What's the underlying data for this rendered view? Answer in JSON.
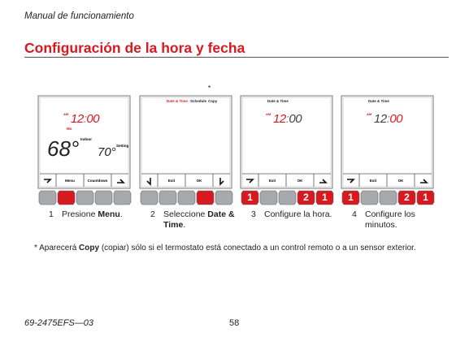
{
  "header": {
    "title": "Manual de funcionamiento"
  },
  "title": "Configuración de la hora y fecha",
  "asterisk": "*",
  "screens": [
    {
      "top": [],
      "time": {
        "am": "AM",
        "hour": "12",
        "sep": ":",
        "min": "00",
        "hour_color": "#d71920",
        "min_color": "#d71920"
      },
      "day": "Mo",
      "indoor_temp": "68°",
      "indoor_label": "Indoor",
      "set_temp": "70°",
      "set_label": "Setting",
      "arrows": [
        "down",
        "up"
      ],
      "soft_keys": [
        "Menu",
        "Countdown"
      ],
      "buttons": [
        {
          "lit": false
        },
        {
          "lit": true
        },
        {
          "lit": false
        },
        {
          "lit": false
        },
        {
          "lit": false
        }
      ]
    },
    {
      "top": [
        {
          "text": "Date & Time",
          "color": "#d71920"
        },
        {
          "text": "Schedule",
          "color": "#222"
        },
        {
          "text": "Copy",
          "color": "#222"
        }
      ],
      "arrows": [
        "left",
        "right"
      ],
      "soft_keys": [
        "Exit",
        "OK"
      ],
      "buttons": [
        {
          "lit": false
        },
        {
          "lit": false
        },
        {
          "lit": false
        },
        {
          "lit": true
        },
        {
          "lit": false
        }
      ]
    },
    {
      "top": [
        {
          "text": "Date & Time",
          "color": "#222"
        }
      ],
      "time": {
        "am": "AM",
        "hour": "12",
        "sep": ":",
        "min": "00",
        "hour_color": "#d71920",
        "min_color": "#444"
      },
      "arrows": [
        "down",
        "up"
      ],
      "soft_keys": [
        "Exit",
        "OK"
      ],
      "buttons": [
        {
          "lit": true,
          "label": "1"
        },
        {
          "lit": false
        },
        {
          "lit": false
        },
        {
          "lit": true,
          "label": "2"
        },
        {
          "lit": true,
          "label": "1"
        }
      ]
    },
    {
      "top": [
        {
          "text": "Date & Time",
          "color": "#222"
        }
      ],
      "time": {
        "am": "AM",
        "hour": "12",
        "sep": ":",
        "min": "00",
        "hour_color": "#444",
        "min_color": "#d71920"
      },
      "arrows": [
        "down",
        "up"
      ],
      "soft_keys": [
        "Exit",
        "OK"
      ],
      "buttons": [
        {
          "lit": true,
          "label": "1"
        },
        {
          "lit": false
        },
        {
          "lit": false
        },
        {
          "lit": true,
          "label": "2"
        },
        {
          "lit": true,
          "label": "1"
        }
      ]
    }
  ],
  "steps": [
    {
      "number": "1",
      "parts": [
        {
          "text": "Presione "
        },
        {
          "text": "Menu",
          "bold": true
        },
        {
          "text": "."
        }
      ]
    },
    {
      "number": "2",
      "parts": [
        {
          "text": "Seleccione "
        },
        {
          "text": "Date & Time",
          "bold": true
        },
        {
          "text": "."
        }
      ]
    },
    {
      "number": "3",
      "parts": [
        {
          "text": "Configure la hora."
        }
      ]
    },
    {
      "number": "4",
      "parts": [
        {
          "text": "Configure los minutos."
        }
      ]
    }
  ],
  "footnote": [
    {
      "text": "* Aparecerá "
    },
    {
      "text": "Copy",
      "bold": true
    },
    {
      "text": " (copiar) sólo si el termostato está conectado a un control remoto o a un sensor exterior."
    }
  ],
  "footer": {
    "code": "69-2475EFS—03",
    "page": "58"
  }
}
